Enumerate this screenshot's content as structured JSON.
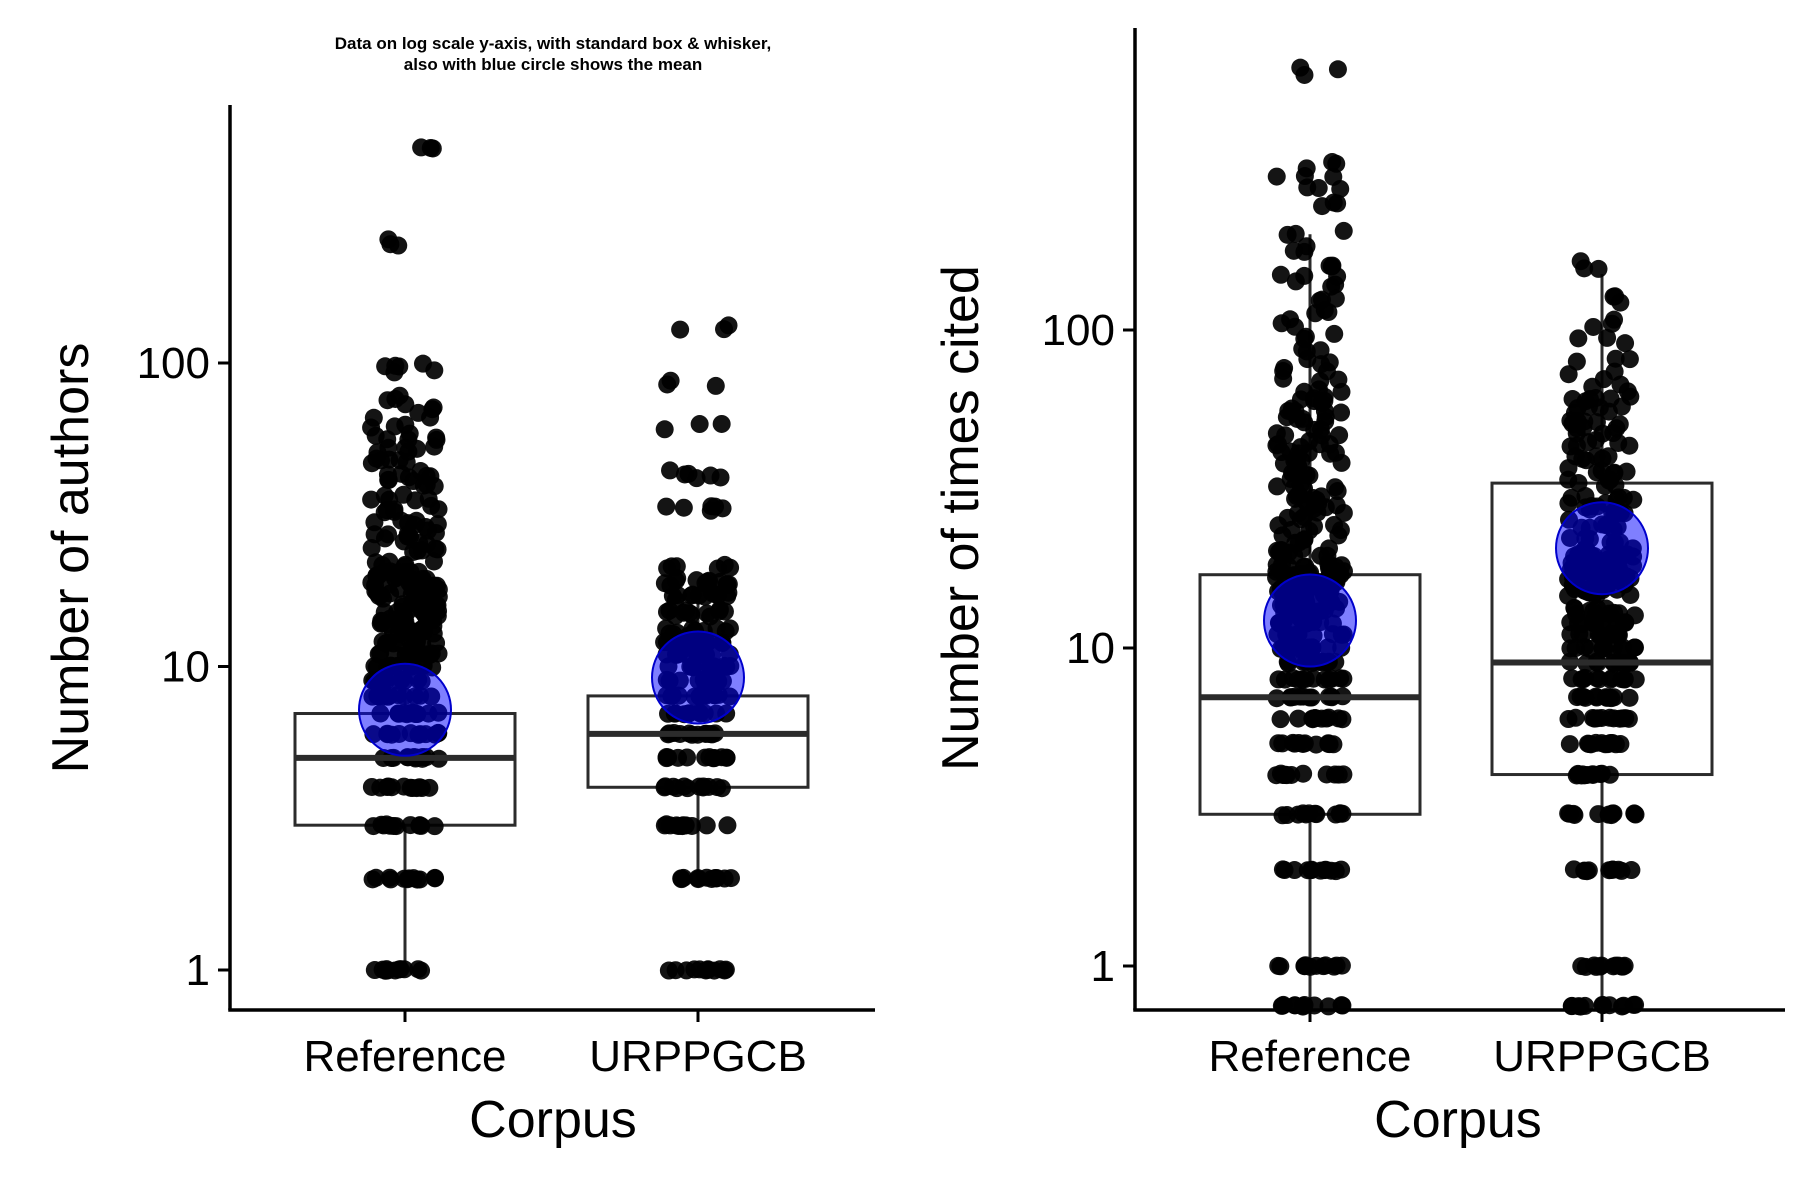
{
  "figure": {
    "title_line1": "Data on log scale y-axis, with standard box & whisker,",
    "title_line2": "also with blue circle shows the mean"
  },
  "colors": {
    "axis": "#000000",
    "box_stroke": "#2b2b2b",
    "points": "#000000",
    "mean_fill": "#0000ff",
    "mean_fill_opacity": 0.5,
    "mean_stroke": "#0000cc"
  },
  "chart_data": [
    {
      "type": "box",
      "title": "Data on log scale y-axis, with standard box & whisker, also with blue circle shows the mean",
      "xlabel": "Corpus",
      "ylabel": "Number of authors",
      "yscale": "log10",
      "ylim": [
        0.8,
        700
      ],
      "yticks": [
        1,
        10,
        100
      ],
      "ytick_labels": [
        "1",
        "10",
        "100"
      ],
      "categories": [
        "Reference",
        "URPPGCB"
      ],
      "boxes": [
        {
          "category": "Reference",
          "whisker_low": 1,
          "q1": 3,
          "median": 5,
          "q3": 7,
          "whisker_high": 12,
          "mean": 7.2,
          "points": [
            1,
            2,
            3,
            4,
            5,
            6,
            7,
            8,
            9,
            10,
            11,
            12,
            13,
            14,
            15,
            16,
            17,
            18,
            19,
            20,
            22,
            24,
            26,
            28,
            30,
            33,
            36,
            40,
            43,
            47,
            52,
            57,
            62,
            68,
            72,
            77,
            95,
            97,
            250,
            500
          ]
        },
        {
          "category": "URPPGCB",
          "whisker_low": 2,
          "q1": 4,
          "median": 6,
          "q3": 8,
          "whisker_high": 17,
          "mean": 9.2,
          "points": [
            1,
            2,
            3,
            4,
            5,
            6,
            7,
            8,
            9,
            10,
            11,
            12,
            13,
            15,
            17,
            19,
            21,
            33,
            43,
            62,
            85,
            130
          ]
        }
      ]
    },
    {
      "type": "box",
      "xlabel": "Corpus",
      "ylabel": "Number of times cited",
      "yscale": "log10",
      "ylim": [
        0.75,
        1000
      ],
      "yticks": [
        1,
        10,
        100
      ],
      "ytick_labels": [
        "1",
        "10",
        "100"
      ],
      "categories": [
        "Reference",
        "URPPGCB"
      ],
      "boxes": [
        {
          "category": "Reference",
          "whisker_low": 0.75,
          "q1": 3,
          "median": 7,
          "q3": 17,
          "whisker_high": 200,
          "mean": 12.2,
          "points": [
            0.75,
            1,
            2,
            3,
            4,
            5,
            6,
            7,
            8,
            9,
            10,
            11,
            12,
            13,
            14,
            15,
            16,
            17,
            18,
            20,
            22,
            24,
            26,
            28,
            30,
            32,
            35,
            38,
            41,
            44,
            48,
            52,
            56,
            60,
            65,
            70,
            75,
            80,
            88,
            95,
            105,
            115,
            125,
            140,
            150,
            160,
            180,
            200,
            250,
            280,
            300,
            330,
            650
          ]
        },
        {
          "category": "URPPGCB",
          "whisker_low": 0.75,
          "q1": 4,
          "median": 9,
          "q3": 33,
          "whisker_high": 150,
          "mean": 20.6,
          "points": [
            0.75,
            1,
            2,
            3,
            4,
            5,
            6,
            7,
            8,
            9,
            10,
            11,
            12,
            13,
            15,
            16,
            17,
            18,
            19,
            20,
            22,
            24,
            26,
            28,
            30,
            33,
            36,
            40,
            44,
            48,
            52,
            56,
            60,
            66,
            72,
            80,
            92,
            105,
            125,
            160
          ]
        }
      ]
    }
  ]
}
